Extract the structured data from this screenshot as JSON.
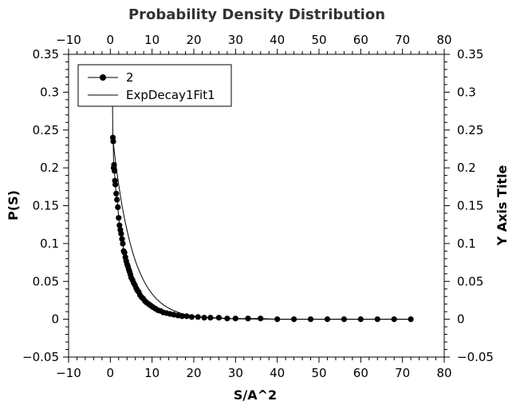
{
  "chart_data": {
    "type": "scatter",
    "title": "Probability Density Distribution",
    "xlabel": "S/A^2",
    "ylabel": "P(S)",
    "ylabel_right": "Y Axis Title",
    "xlim": [
      -10,
      80
    ],
    "ylim": [
      -0.05,
      0.35
    ],
    "x_ticks": [
      -10,
      0,
      10,
      20,
      30,
      40,
      50,
      60,
      70,
      80
    ],
    "x_tick_labels": [
      "−10",
      "0",
      "10",
      "20",
      "30",
      "40",
      "50",
      "60",
      "70",
      "80"
    ],
    "y_ticks": [
      -0.05,
      0,
      0.05,
      0.1,
      0.15,
      0.2,
      0.25,
      0.3,
      0.35
    ],
    "y_tick_labels": [
      "−0.05",
      "0",
      "0.05",
      "0.1",
      "0.15",
      "0.2",
      "0.25",
      "0.3",
      "0.35"
    ],
    "grid": false,
    "legend_position": "top-left",
    "series": [
      {
        "name": "2",
        "style": "line+markers",
        "color": "#000000",
        "x": [
          0.5,
          0.6,
          0.7,
          0.8,
          0.9,
          1.0,
          1.1,
          1.2,
          1.4,
          1.6,
          1.8,
          2.0,
          2.2,
          2.4,
          2.6,
          2.8,
          3.0,
          3.2,
          3.4,
          3.6,
          3.8,
          4.0,
          4.2,
          4.4,
          4.6,
          4.8,
          5.0,
          5.3,
          5.6,
          5.9,
          6.2,
          6.5,
          6.8,
          7.1,
          7.5,
          7.9,
          8.3,
          8.7,
          9.2,
          9.7,
          10.2,
          10.8,
          11.4,
          12.0,
          12.7,
          13.5,
          14.3,
          15.2,
          16.2,
          17.2,
          18.3,
          19.5,
          21.0,
          22.5,
          24.0,
          26.0,
          28.0,
          30.0,
          33.0,
          36.0,
          40.0,
          44.0,
          48.0,
          52.0,
          56.0,
          60.0,
          64.0,
          68.0,
          72.0
        ],
        "y": [
          0.305,
          0.24,
          0.235,
          0.2,
          0.204,
          0.196,
          0.183,
          0.178,
          0.166,
          0.158,
          0.148,
          0.134,
          0.124,
          0.118,
          0.113,
          0.106,
          0.1,
          0.09,
          0.088,
          0.082,
          0.077,
          0.073,
          0.07,
          0.066,
          0.063,
          0.059,
          0.055,
          0.052,
          0.048,
          0.045,
          0.041,
          0.038,
          0.036,
          0.032,
          0.029,
          0.027,
          0.024,
          0.022,
          0.02,
          0.018,
          0.016,
          0.014,
          0.012,
          0.011,
          0.009,
          0.008,
          0.007,
          0.006,
          0.005,
          0.004,
          0.004,
          0.003,
          0.003,
          0.002,
          0.002,
          0.002,
          0.001,
          0.001,
          0.001,
          0.001,
          0.0,
          0.0,
          0.0,
          0.0,
          0.0,
          0.0,
          0.0,
          0.0,
          0.0
        ]
      },
      {
        "name": "ExpDecay1Fit1",
        "style": "line",
        "color": "#000000",
        "fit": {
          "model": "exp_decay",
          "y0": 0.0,
          "A": 0.27,
          "t": 4.8,
          "x_start": 0.5,
          "x_end": 72.0
        }
      }
    ]
  }
}
